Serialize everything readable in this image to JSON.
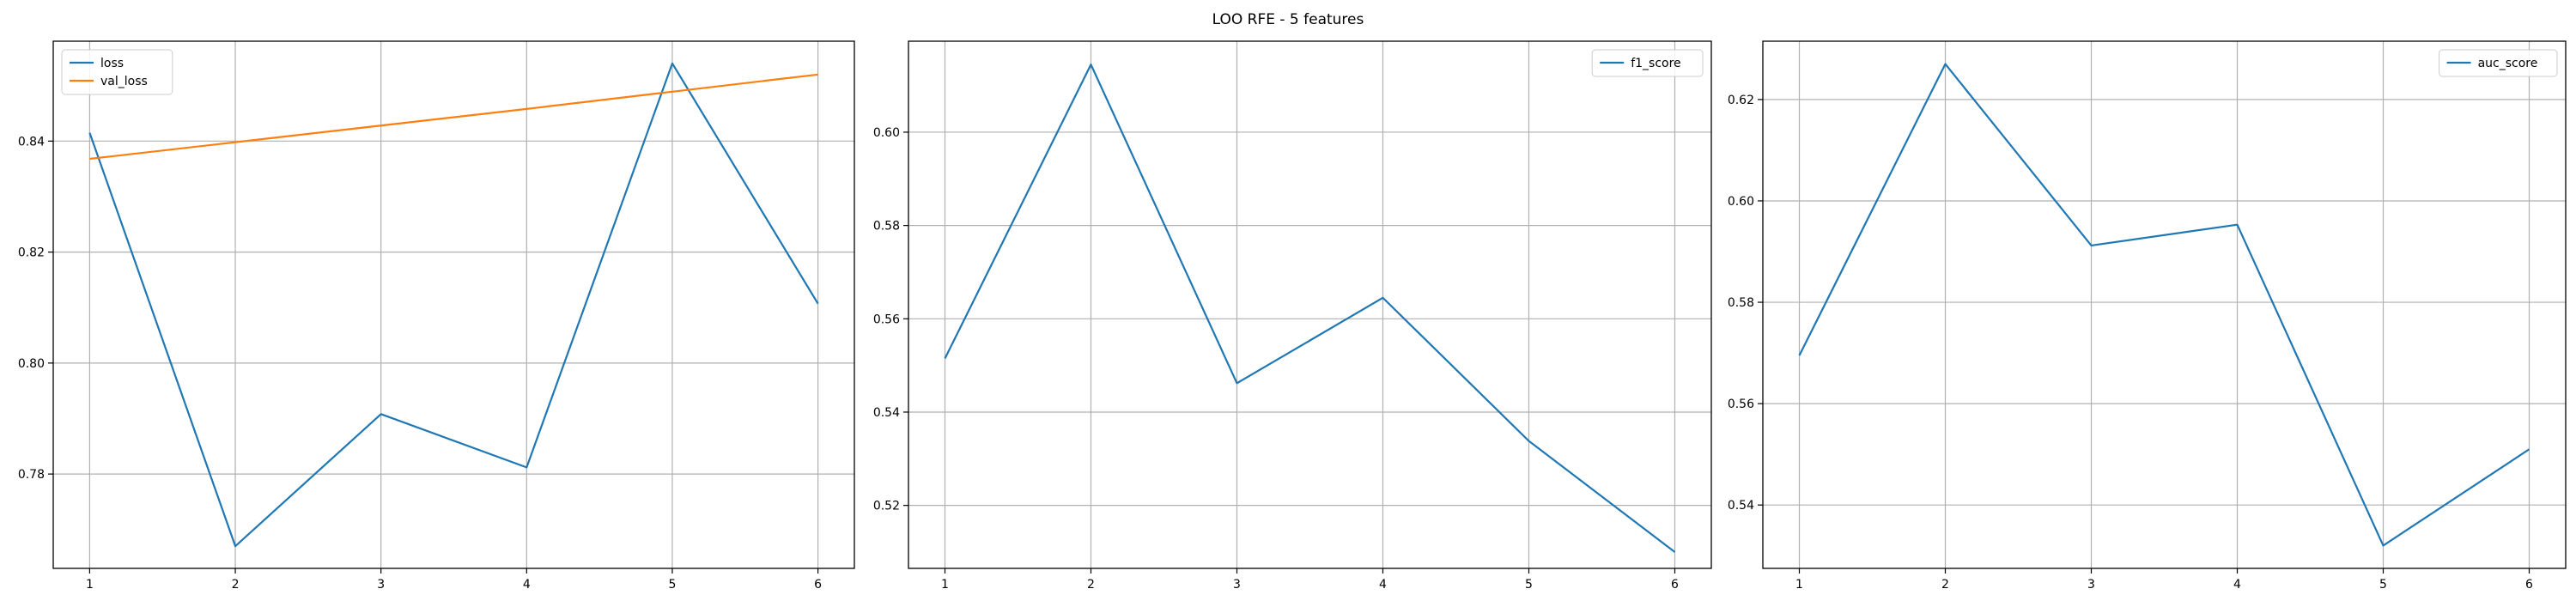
{
  "figure": {
    "suptitle": "LOO RFE - 5 features"
  },
  "colors": {
    "blue": "#1f77b4",
    "orange": "#ff7f0e",
    "grid": "#b0b0b0",
    "axes": "#000000",
    "legend_border": "#cccccc"
  },
  "chart_data": [
    {
      "type": "line",
      "title": "",
      "xlabel": "",
      "ylabel": "",
      "x": [
        1,
        2,
        3,
        4,
        5,
        6
      ],
      "xticks": [
        "1",
        "2",
        "3",
        "4",
        "5",
        "6"
      ],
      "xlim": [
        0.75,
        6.25
      ],
      "yticks": [
        "0.78",
        "0.80",
        "0.82",
        "0.84"
      ],
      "ylim": [
        0.763,
        0.858
      ],
      "grid": true,
      "legend": "upper left",
      "series": [
        {
          "name": "loss",
          "color": "#1f77b4",
          "values": [
            0.8415,
            0.767,
            0.7908,
            0.7812,
            0.854,
            0.8107
          ]
        },
        {
          "name": "val_loss",
          "color": "#ff7f0e",
          "values": [
            0.8368,
            0.8398,
            0.8428,
            0.8458,
            0.8489,
            0.852
          ]
        }
      ]
    },
    {
      "type": "line",
      "title": "",
      "xlabel": "",
      "ylabel": "",
      "x": [
        1,
        2,
        3,
        4,
        5,
        6
      ],
      "xticks": [
        "1",
        "2",
        "3",
        "4",
        "5",
        "6"
      ],
      "xlim": [
        0.75,
        6.25
      ],
      "yticks": [
        "0.52",
        "0.54",
        "0.56",
        "0.58",
        "0.60"
      ],
      "ylim": [
        0.5065,
        0.6195
      ],
      "grid": true,
      "legend": "upper right",
      "series": [
        {
          "name": "f1_score",
          "color": "#1f77b4",
          "values": [
            0.5515,
            0.6145,
            0.5462,
            0.5645,
            0.5338,
            0.51
          ]
        }
      ]
    },
    {
      "type": "line",
      "title": "",
      "xlabel": "",
      "ylabel": "",
      "x": [
        1,
        2,
        3,
        4,
        5,
        6
      ],
      "xticks": [
        "1",
        "2",
        "3",
        "4",
        "5",
        "6"
      ],
      "xlim": [
        0.75,
        6.25
      ],
      "yticks": [
        "0.54",
        "0.56",
        "0.58",
        "0.60",
        "0.62"
      ],
      "ylim": [
        0.5275,
        0.6315
      ],
      "grid": true,
      "legend": "upper right",
      "series": [
        {
          "name": "auc_score",
          "color": "#1f77b4",
          "values": [
            0.5695,
            0.627,
            0.5912,
            0.5953,
            0.532,
            0.551
          ]
        }
      ]
    }
  ]
}
